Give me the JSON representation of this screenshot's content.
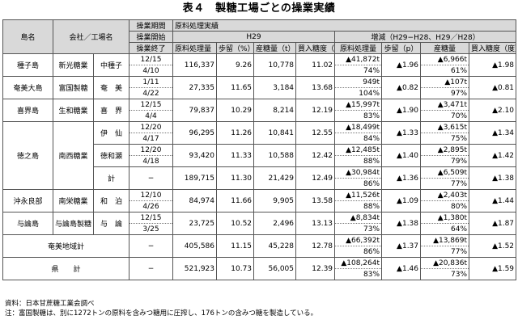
{
  "title": "表４　製糖工場ごとの操業実績",
  "header": {
    "island": "島名",
    "company_factory": "会社／工場名",
    "period": "操業期間",
    "start": "操業開始",
    "end": "操業終了",
    "raw_data": "原料処理実績",
    "h29": "H29",
    "change": "増減（H29−H28、H29／H28）",
    "cols_h29": [
      "原料処理量（t）",
      "歩留（%）",
      "産糖量（t）",
      "買入糖度（度）"
    ],
    "cols_change": [
      "原料処理量",
      "歩留（p）",
      "産糖量",
      "買入糖度（度）"
    ]
  },
  "rows": [
    {
      "island": "種子島",
      "company": "新光糖業",
      "factory": "中種子",
      "start": "12/15",
      "end": "4/10",
      "raw": "116,337",
      "yield": "9.26",
      "sugar": "10,778",
      "brix": "11.02",
      "d_raw": "▲41,872t",
      "d_raw_pct": "74%",
      "d_yield": "▲1.96",
      "d_sugar": "▲6,966t",
      "d_sugar_pct": "61%",
      "d_brix": "▲1.98"
    },
    {
      "island": "奄美大島",
      "company": "富国製糖",
      "factory": "奄　美",
      "start": "1/11",
      "end": "4/22",
      "raw": "27,335",
      "yield": "11.65",
      "sugar": "3,184",
      "brix": "13.68",
      "d_raw": "949t",
      "d_raw_pct": "104%",
      "d_yield": "▲0.82",
      "d_sugar": "▲107t",
      "d_sugar_pct": "97%",
      "d_brix": "▲0.81"
    },
    {
      "island": "喜界島",
      "company": "生和糖業",
      "factory": "喜　界",
      "start": "12/15",
      "end": "4/4",
      "raw": "79,837",
      "yield": "10.29",
      "sugar": "8,214",
      "brix": "12.19",
      "d_raw": "▲15,997t",
      "d_raw_pct": "83%",
      "d_yield": "▲1.90",
      "d_sugar": "▲3,471t",
      "d_sugar_pct": "70%",
      "d_brix": "▲2.10"
    },
    {
      "island": "徳之島",
      "company": "南西糖業",
      "factory": "伊　仙",
      "start": "12/20",
      "end": "4/17",
      "raw": "96,295",
      "yield": "11.26",
      "sugar": "10,841",
      "brix": "12.55",
      "d_raw": "▲18,499t",
      "d_raw_pct": "84%",
      "d_yield": "▲1.33",
      "d_sugar": "▲3,615t",
      "d_sugar_pct": "75%",
      "d_brix": "▲1.34"
    },
    {
      "island": "",
      "company": "",
      "factory": "徳和瀬",
      "start": "12/20",
      "end": "4/18",
      "raw": "93,420",
      "yield": "11.33",
      "sugar": "10,588",
      "brix": "12.42",
      "d_raw": "▲12,485t",
      "d_raw_pct": "88%",
      "d_yield": "▲1.40",
      "d_sugar": "▲2,895t",
      "d_sugar_pct": "79%",
      "d_brix": "▲1.42"
    },
    {
      "island": "",
      "company": "",
      "factory": "計",
      "start": "−",
      "end": "",
      "raw": "189,715",
      "yield": "11.30",
      "sugar": "21,429",
      "brix": "12.49",
      "d_raw": "▲30,984t",
      "d_raw_pct": "86%",
      "d_yield": "▲1.36",
      "d_sugar": "▲6,509t",
      "d_sugar_pct": "77%",
      "d_brix": "▲1.38"
    },
    {
      "island": "沖永良部",
      "company": "南栄糖業",
      "factory": "和　泊",
      "start": "12/10",
      "end": "4/26",
      "raw": "84,974",
      "yield": "11.66",
      "sugar": "9,905",
      "brix": "13.58",
      "d_raw": "▲11,526t",
      "d_raw_pct": "88%",
      "d_yield": "▲1.09",
      "d_sugar": "▲2,403t",
      "d_sugar_pct": "80%",
      "d_brix": "▲1.44"
    },
    {
      "island": "与論島",
      "company": "与論島製糖",
      "factory": "与　論",
      "start": "12/15",
      "end": "3/25",
      "raw": "23,725",
      "yield": "10.52",
      "sugar": "2,496",
      "brix": "13.13",
      "d_raw": "▲8,834t",
      "d_raw_pct": "73%",
      "d_yield": "▲1.38",
      "d_sugar": "▲1,380t",
      "d_sugar_pct": "64%",
      "d_brix": "▲1.87"
    },
    {
      "label": "奄美地域計",
      "start": "−",
      "raw": "405,586",
      "yield": "11.15",
      "sugar": "45,228",
      "brix": "12.78",
      "d_raw": "▲66,392t",
      "d_raw_pct": "86%",
      "d_yield": "▲1.37",
      "d_sugar": "▲13,869t",
      "d_sugar_pct": "77%",
      "d_brix": "▲1.52"
    },
    {
      "label": "県　　計",
      "start": "−",
      "raw": "521,923",
      "yield": "10.73",
      "sugar": "56,005",
      "brix": "12.39",
      "d_raw": "▲108,264t",
      "d_raw_pct": "83%",
      "d_yield": "▲1.46",
      "d_sugar": "▲20,836t",
      "d_sugar_pct": "73%",
      "d_brix": "▲1.59"
    }
  ],
  "notes": [
    "資料：日本甘蔗糖工業会調べ",
    "注：富国製糖は、別に1272トンの原料を含みつ糖用に圧搾し、176トンの含みつ糖を製造している。"
  ]
}
